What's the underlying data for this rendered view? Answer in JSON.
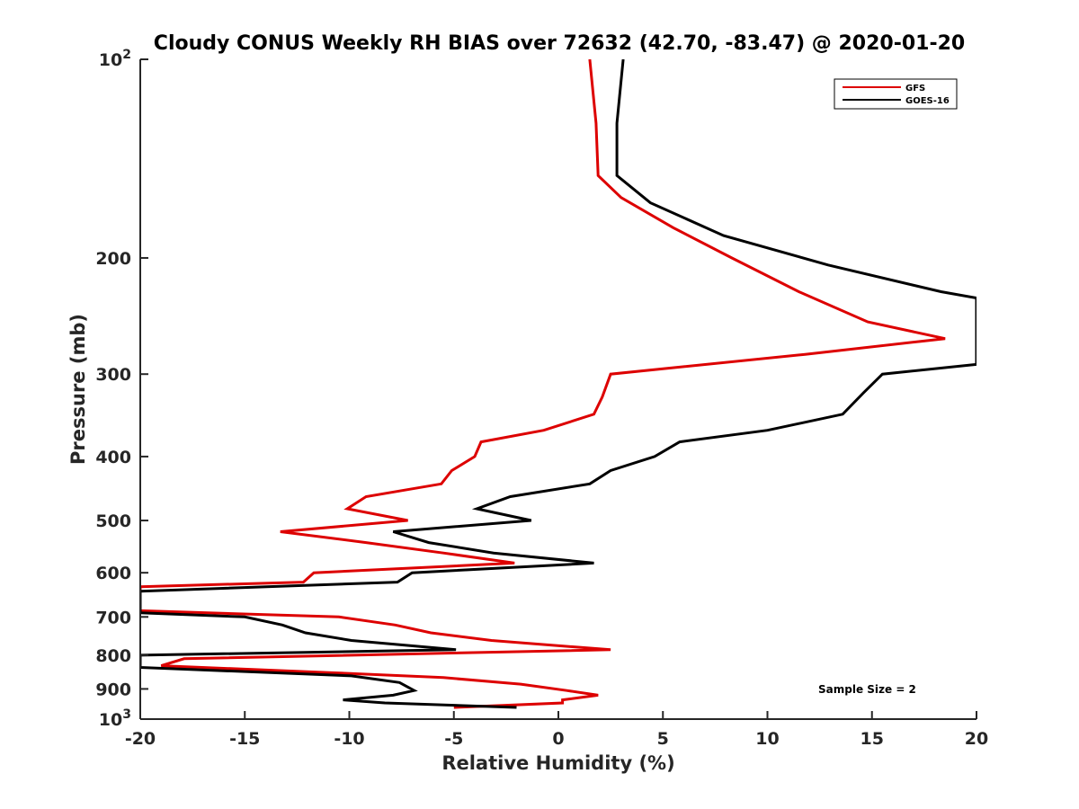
{
  "chart_data": {
    "type": "line",
    "title": "Cloudy CONUS Weekly RH BIAS over 72632 (42.70, -83.47) @ 2020-01-20",
    "xlabel": "Relative Humidity (%)",
    "ylabel": "Pressure (mb)",
    "xlim": [
      -20,
      20
    ],
    "ylim": [
      100,
      1000
    ],
    "y_scale": "log",
    "y_reversed": true,
    "grid": false,
    "legend_position": "top-right",
    "x_ticks": [
      -20,
      -15,
      -10,
      -5,
      0,
      5,
      10,
      15,
      20
    ],
    "x_tick_labels": [
      "-20",
      "-15",
      "-10",
      "-5",
      "0",
      "5",
      "10",
      "15",
      "20"
    ],
    "y_ticks": [
      100,
      200,
      300,
      400,
      500,
      600,
      700,
      800,
      900,
      1000
    ],
    "y_tick_labels": [
      {
        "base": "10",
        "exp": "2"
      },
      {
        "base": "200",
        "exp": ""
      },
      {
        "base": "300",
        "exp": ""
      },
      {
        "base": "400",
        "exp": ""
      },
      {
        "base": "500",
        "exp": ""
      },
      {
        "base": "600",
        "exp": ""
      },
      {
        "base": "700",
        "exp": ""
      },
      {
        "base": "800",
        "exp": ""
      },
      {
        "base": "900",
        "exp": ""
      },
      {
        "base": "10",
        "exp": "3"
      }
    ],
    "annotation": "Sample Size = 2",
    "series": [
      {
        "name": "GFS",
        "color": "#dd0000",
        "points": [
          [
            1.5,
            100
          ],
          [
            1.8,
            125
          ],
          [
            1.9,
            150
          ],
          [
            3.0,
            162
          ],
          [
            5.5,
            180
          ],
          [
            8.3,
            200
          ],
          [
            11.5,
            225
          ],
          [
            14.8,
            250
          ],
          [
            18.5,
            265
          ],
          [
            11.8,
            280
          ],
          [
            2.5,
            300
          ],
          [
            2.1,
            325
          ],
          [
            1.7,
            345
          ],
          [
            -0.7,
            365
          ],
          [
            -3.7,
            380
          ],
          [
            -4.0,
            400
          ],
          [
            -5.1,
            420
          ],
          [
            -5.6,
            440
          ],
          [
            -9.2,
            460
          ],
          [
            -10.1,
            480
          ],
          [
            -7.2,
            500
          ],
          [
            -13.3,
            520
          ],
          [
            -9.2,
            540
          ],
          [
            -5.5,
            560
          ],
          [
            -2.1,
            580
          ],
          [
            -11.7,
            600
          ],
          [
            -12.2,
            620
          ],
          [
            -20.0,
            630
          ],
          [
            -20.0,
            685
          ],
          [
            -10.5,
            700
          ],
          [
            -7.8,
            720
          ],
          [
            -6.1,
            740
          ],
          [
            -3.2,
            760
          ],
          [
            2.5,
            785
          ],
          [
            -17.9,
            810
          ],
          [
            -19.0,
            830
          ],
          [
            -11.0,
            850
          ],
          [
            -5.5,
            865
          ],
          [
            -1.8,
            885
          ],
          [
            0.4,
            905
          ],
          [
            1.9,
            920
          ],
          [
            0.2,
            935
          ],
          [
            0.2,
            945
          ],
          [
            -5.0,
            960
          ]
        ]
      },
      {
        "name": "GOES-16",
        "color": "#000000",
        "points": [
          [
            3.1,
            100
          ],
          [
            2.8,
            125
          ],
          [
            2.8,
            150
          ],
          [
            4.4,
            165
          ],
          [
            7.9,
            185
          ],
          [
            12.9,
            205
          ],
          [
            18.3,
            225
          ],
          [
            20.0,
            230
          ],
          [
            20.0,
            290
          ],
          [
            15.5,
            300
          ],
          [
            14.6,
            320
          ],
          [
            13.6,
            345
          ],
          [
            10.0,
            365
          ],
          [
            5.8,
            380
          ],
          [
            4.6,
            400
          ],
          [
            2.5,
            420
          ],
          [
            1.5,
            440
          ],
          [
            -2.3,
            460
          ],
          [
            -3.9,
            480
          ],
          [
            -1.3,
            500
          ],
          [
            -7.9,
            520
          ],
          [
            -6.2,
            540
          ],
          [
            -3.1,
            560
          ],
          [
            1.7,
            580
          ],
          [
            -7.0,
            600
          ],
          [
            -7.7,
            620
          ],
          [
            -20.0,
            640
          ],
          [
            -20.0,
            690
          ],
          [
            -15.0,
            700
          ],
          [
            -13.2,
            720
          ],
          [
            -12.1,
            740
          ],
          [
            -9.9,
            760
          ],
          [
            -4.9,
            785
          ],
          [
            -20.0,
            800
          ],
          [
            -20.0,
            835
          ],
          [
            -9.9,
            860
          ],
          [
            -7.6,
            880
          ],
          [
            -6.9,
            905
          ],
          [
            -7.9,
            920
          ],
          [
            -10.3,
            935
          ],
          [
            -8.3,
            945
          ],
          [
            -2.0,
            960
          ]
        ]
      }
    ]
  }
}
